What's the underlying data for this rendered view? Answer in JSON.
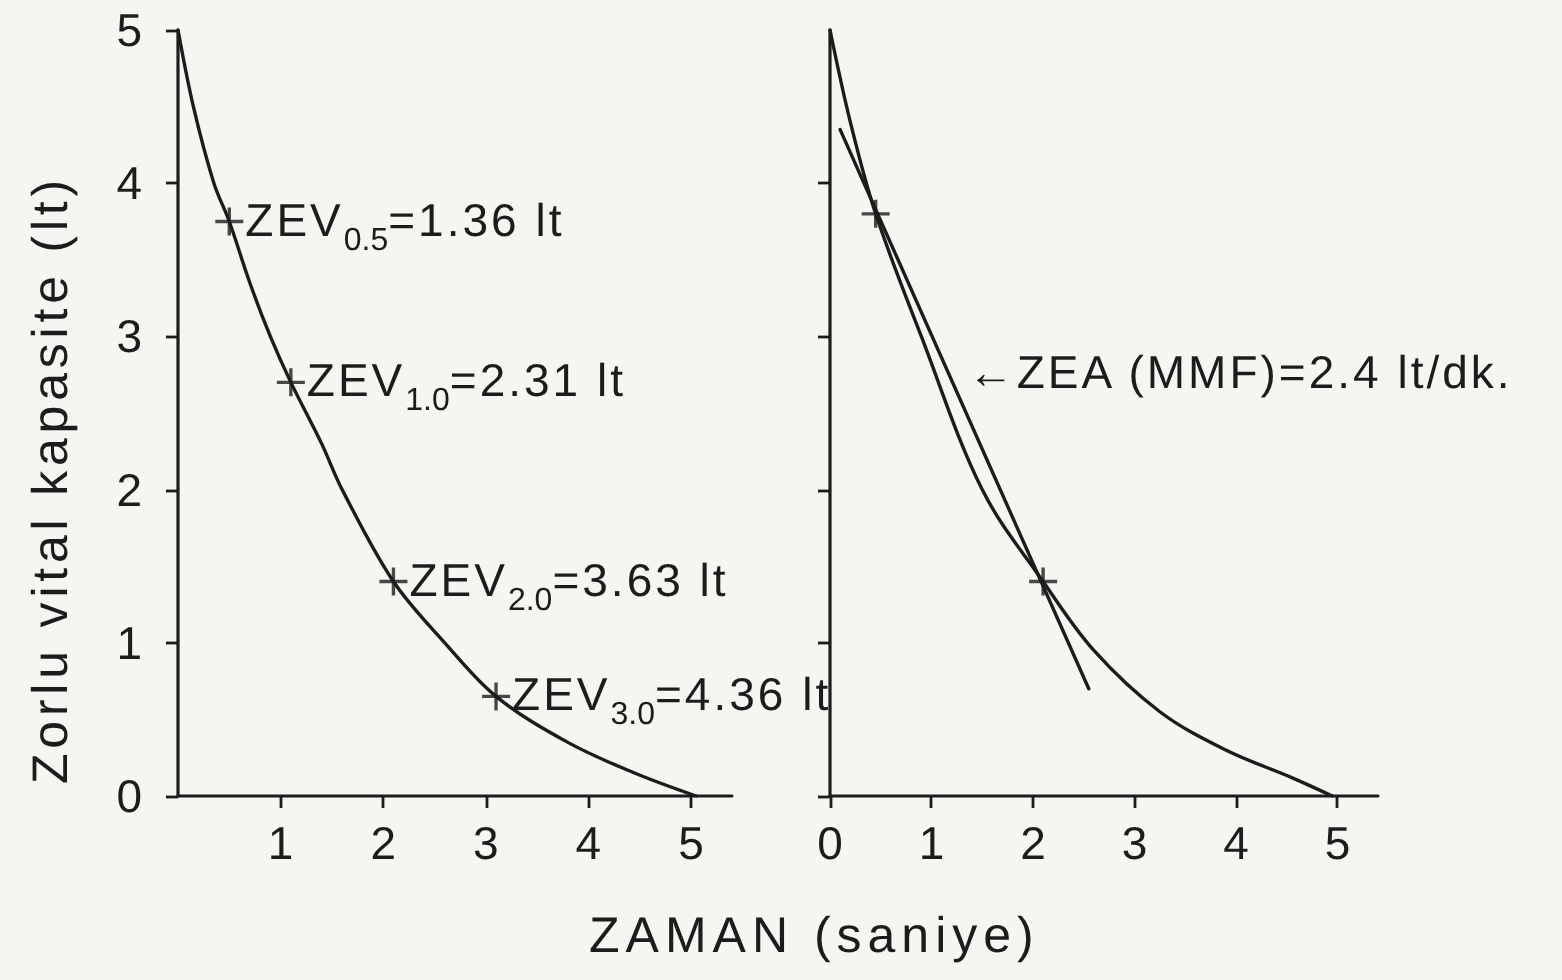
{
  "chart_data": [
    {
      "type": "line",
      "ylabel": "Zorlu vital kapasite (lt)",
      "xlabel": "ZAMAN (saniye)",
      "xlim": [
        0,
        5.4
      ],
      "xticks": [
        1,
        2,
        3,
        4,
        5
      ],
      "ylim": [
        0,
        5
      ],
      "yticks": [
        0,
        1,
        2,
        3,
        4,
        5
      ],
      "series": [
        {
          "type": "line",
          "color": "#1c1c1c",
          "x": [
            0,
            0.15,
            0.35,
            0.5,
            0.7,
            0.9,
            1.1,
            1.4,
            1.6,
            2.1,
            2.6,
            3.1,
            3.8,
            4.45,
            5.05
          ],
          "values": [
            5,
            4.5,
            4.0,
            3.75,
            3.35,
            3.0,
            2.7,
            2.3,
            2.0,
            1.4,
            1.0,
            0.65,
            0.35,
            0.15,
            0
          ]
        },
        {
          "type": "scatter",
          "marker": "cross",
          "color": "#1c1c1c",
          "x": [
            0.5,
            1.1,
            2.1,
            3.1
          ],
          "values": [
            3.75,
            2.7,
            1.4,
            0.65
          ]
        }
      ],
      "annotations": [
        {
          "text": "ZEV$_{0.5}$=1.36 lt",
          "x": 0.5,
          "y": 3.75
        },
        {
          "text": "ZEV$_{1.0}$=2.31 lt",
          "x": 1.1,
          "y": 2.7
        },
        {
          "text": "ZEV$_{2.0}$=3.63 lt",
          "x": 2.1,
          "y": 1.4
        },
        {
          "text": "ZEV$_{3.0}$=4.36 lt",
          "x": 3.1,
          "y": 0.65
        }
      ]
    },
    {
      "type": "line",
      "xlim": [
        0,
        5.4
      ],
      "xticks": [
        0,
        1,
        2,
        3,
        4,
        5
      ],
      "ylim": [
        0,
        5
      ],
      "yticks": [
        0,
        1,
        2,
        3,
        4
      ],
      "tick_labels": "x",
      "series": [
        {
          "type": "line",
          "color": "#1c1c1c",
          "x": [
            0,
            0.2,
            0.45,
            0.9,
            1.5,
            2.1,
            2.6,
            3.25,
            3.9,
            4.55,
            4.95
          ],
          "values": [
            5,
            4.4,
            3.8,
            3.0,
            2.0,
            1.4,
            0.95,
            0.55,
            0.3,
            0.12,
            0
          ]
        },
        {
          "type": "line",
          "color": "#1c1c1c",
          "x": [
            0.1,
            2.55
          ],
          "values": [
            4.35,
            0.7
          ]
        },
        {
          "type": "scatter",
          "marker": "cross",
          "color": "#1c1c1c",
          "x": [
            0.45,
            2.1
          ],
          "values": [
            3.8,
            1.4
          ]
        }
      ],
      "annotations": [
        {
          "text": "←ZEA (MMF)=2.4 lt/dk.",
          "x": 1.2,
          "y": 2.75
        }
      ]
    }
  ]
}
